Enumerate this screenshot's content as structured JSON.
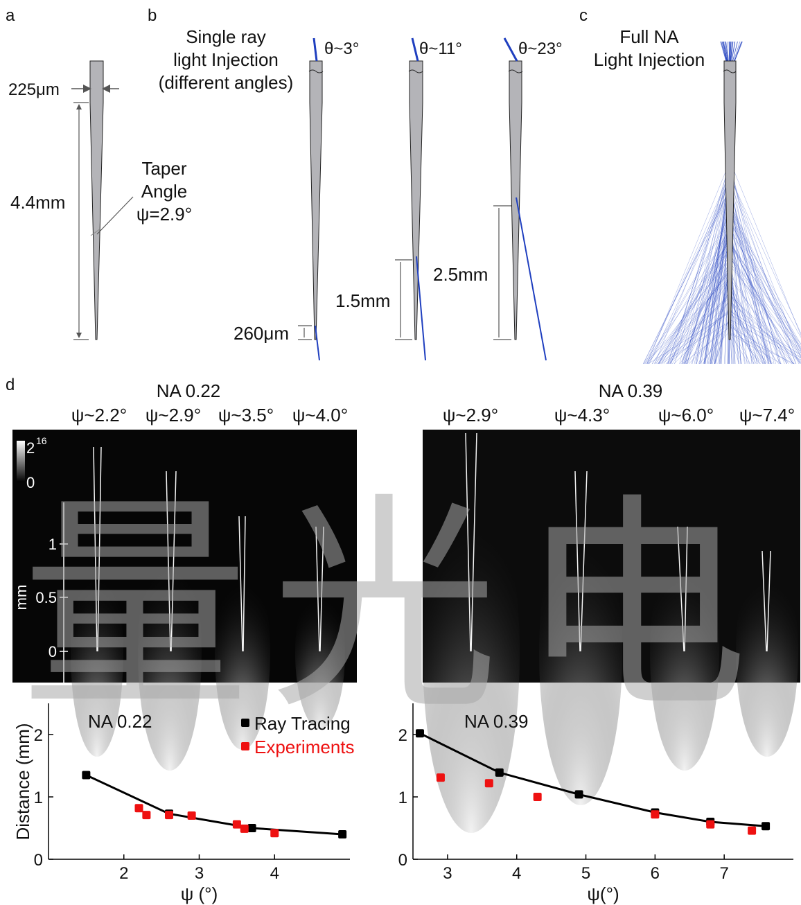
{
  "panels": {
    "a": {
      "letter": "a",
      "width_label": "225μm",
      "length_label": "4.4mm",
      "taper_lines": [
        "Taper",
        "Angle",
        "ψ=2.9°"
      ]
    },
    "b": {
      "letter": "b",
      "title_lines": [
        "Single ray",
        "light Injection",
        "(different angles)"
      ],
      "angle_labels": [
        "θ~3°",
        "θ~11°",
        "θ~23°"
      ],
      "distance_labels": [
        "260μm",
        "1.5mm",
        "2.5mm"
      ]
    },
    "c": {
      "letter": "c",
      "title_lines": [
        "Full NA",
        "Light Injection"
      ]
    },
    "d": {
      "letter": "d",
      "left_title": "NA 0.22",
      "right_title": "NA 0.39",
      "left_psi": [
        "ψ~2.2°",
        "ψ~2.9°",
        "ψ~3.5°",
        "ψ~4.0°"
      ],
      "right_psi": [
        "ψ~2.9°",
        "ψ~4.3°",
        "ψ~6.0°",
        "ψ~7.4°"
      ],
      "colorbar_max_base": "2",
      "colorbar_max_exp": "16",
      "colorbar_min": "0",
      "scale_ticks": [
        "1",
        "0.5",
        "0"
      ],
      "scale_unit": "mm"
    }
  },
  "watermark": "量光电",
  "colors": {
    "fiber_fill": "#b4b4b8",
    "ray": "#1f3fbf",
    "ray_tracing": "#000000",
    "experiments": "#ee1111"
  },
  "chart_data": [
    {
      "type": "line",
      "title": "NA 0.22",
      "xlabel": "ψ (°)",
      "ylabel": "Distance (mm)",
      "xlim": [
        1.0,
        5.0
      ],
      "ylim": [
        0,
        2.5
      ],
      "xticks": [
        "2",
        "3",
        "4"
      ],
      "yticks": [
        "0",
        "1",
        "2"
      ],
      "legend": "top-right",
      "series": [
        {
          "name": "Ray Tracing",
          "x": [
            1.5,
            2.6,
            3.7,
            4.9
          ],
          "y": [
            1.35,
            0.73,
            0.5,
            0.4
          ]
        },
        {
          "name": "Experiments",
          "x": [
            2.2,
            2.3,
            2.6,
            2.9,
            3.5,
            3.6,
            4.0
          ],
          "y": [
            0.82,
            0.71,
            0.71,
            0.7,
            0.56,
            0.49,
            0.42
          ]
        }
      ]
    },
    {
      "type": "line",
      "title": "NA 0.39",
      "xlabel": "ψ(°)",
      "ylabel": "",
      "xlim": [
        2.5,
        8.0
      ],
      "ylim": [
        0,
        2.5
      ],
      "xticks": [
        "3",
        "4",
        "5",
        "6",
        "7"
      ],
      "yticks": [
        "0",
        "1",
        "2"
      ],
      "series": [
        {
          "x": [
            2.6,
            3.75,
            4.9,
            6.0,
            6.8,
            7.6
          ],
          "y": [
            2.02,
            1.39,
            1.04,
            0.75,
            0.6,
            0.53
          ]
        },
        {
          "x": [
            2.9,
            3.6,
            4.3,
            6.0,
            6.8,
            7.4
          ],
          "y": [
            1.31,
            1.22,
            1.0,
            0.72,
            0.56,
            0.46
          ]
        }
      ]
    }
  ]
}
